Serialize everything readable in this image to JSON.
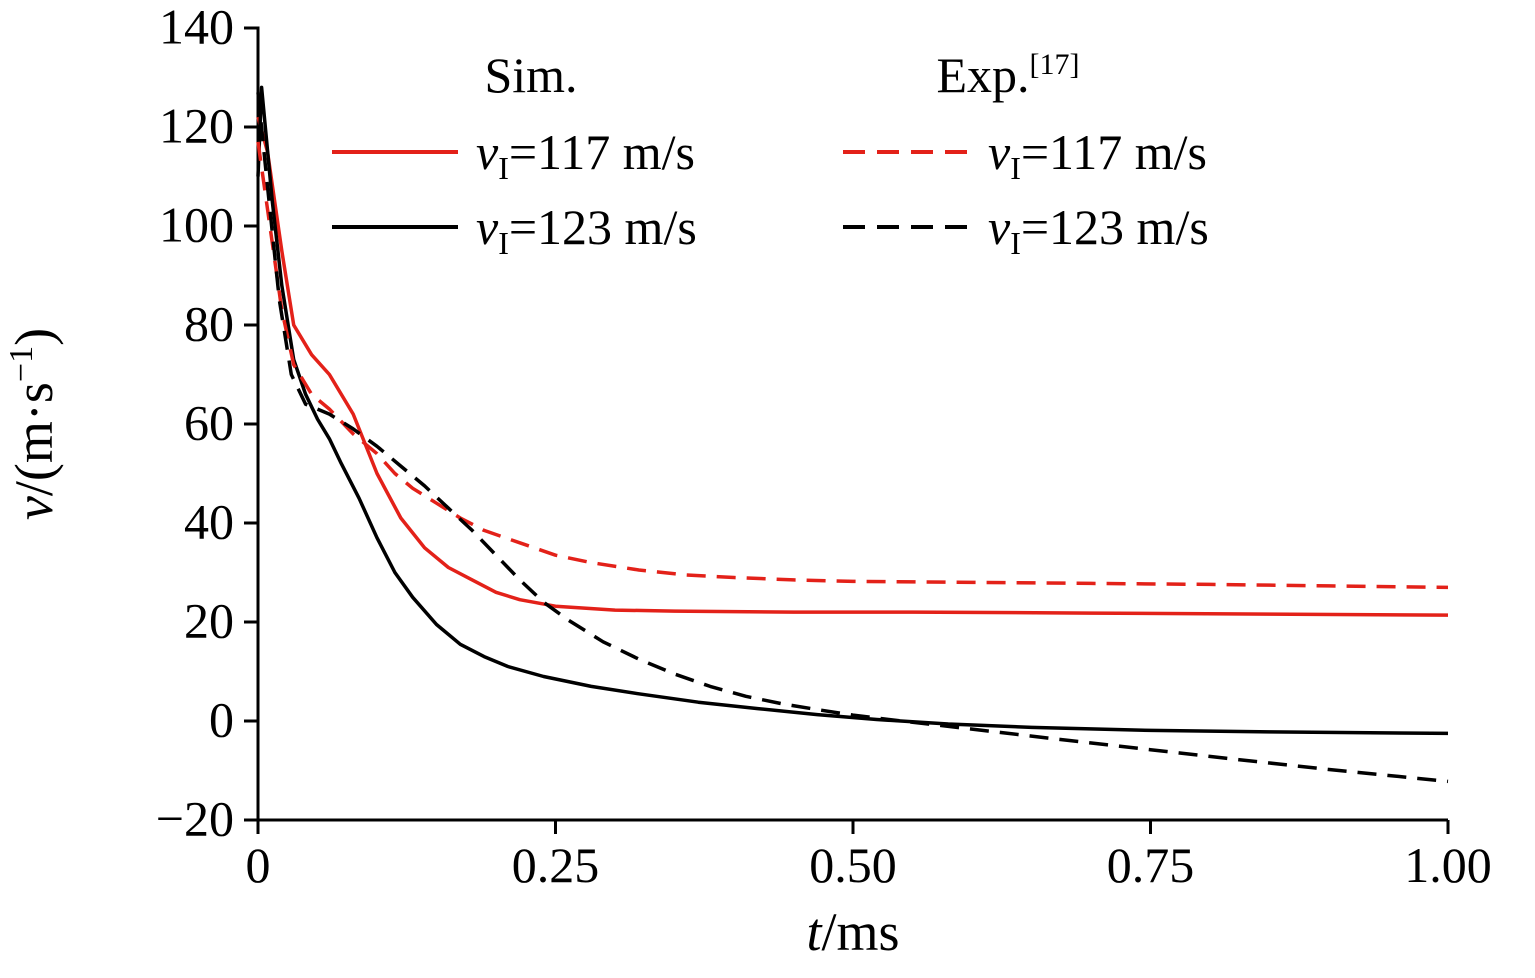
{
  "page": {
    "background": "#ffffff"
  },
  "chart_data": {
    "type": "line",
    "title": "",
    "xlabel": {
      "italic": "t",
      "rest": "/ms"
    },
    "ylabel": {
      "italic": "v",
      "pre_sup": "/(m·s",
      "sup": "−1",
      "post_sup": ")"
    },
    "xlim": [
      0,
      1.0
    ],
    "ylim": [
      -20,
      140
    ],
    "grid": false,
    "axis_color": "#000000",
    "xticks": {
      "values": [
        0,
        0.25,
        0.5,
        0.75,
        1.0
      ],
      "labels": [
        "0",
        "0.25",
        "0.50",
        "0.75",
        "1.00"
      ]
    },
    "yticks": {
      "values": [
        -20,
        0,
        20,
        40,
        60,
        80,
        100,
        120,
        140
      ],
      "labels": [
        "−20",
        "0",
        "20",
        "40",
        "60",
        "80",
        "100",
        "120",
        "140"
      ]
    },
    "legend": {
      "position": "top-inside",
      "columns": [
        {
          "header": "Sim.",
          "header_sup": "",
          "series": [
            0,
            1
          ]
        },
        {
          "header": "Exp.",
          "header_sup": "[17]",
          "series": [
            2,
            3
          ]
        }
      ]
    },
    "series": [
      {
        "name": "sim-v117",
        "label": {
          "italic": "v",
          "sub": "I",
          "rest": "=117 m/s"
        },
        "color": "#e32119",
        "dash": "solid",
        "points": [
          [
            0,
            122
          ],
          [
            0.008,
            115
          ],
          [
            0.02,
            95
          ],
          [
            0.03,
            80
          ],
          [
            0.045,
            74
          ],
          [
            0.06,
            70
          ],
          [
            0.08,
            62
          ],
          [
            0.1,
            50
          ],
          [
            0.12,
            41
          ],
          [
            0.14,
            35
          ],
          [
            0.16,
            31
          ],
          [
            0.18,
            28.5
          ],
          [
            0.2,
            26
          ],
          [
            0.22,
            24.5
          ],
          [
            0.25,
            23.2
          ],
          [
            0.3,
            22.4
          ],
          [
            0.35,
            22.2
          ],
          [
            0.45,
            22
          ],
          [
            0.55,
            22
          ],
          [
            0.7,
            21.8
          ],
          [
            0.85,
            21.6
          ],
          [
            1.0,
            21.4
          ]
        ]
      },
      {
        "name": "sim-v123",
        "label": {
          "italic": "v",
          "sub": "I",
          "rest": "=123 m/s"
        },
        "color": "#000000",
        "dash": "solid",
        "points": [
          [
            0,
            110
          ],
          [
            0.003,
            128
          ],
          [
            0.012,
            105
          ],
          [
            0.02,
            88
          ],
          [
            0.03,
            73
          ],
          [
            0.04,
            66
          ],
          [
            0.05,
            61
          ],
          [
            0.06,
            57
          ],
          [
            0.07,
            52
          ],
          [
            0.085,
            45
          ],
          [
            0.1,
            37
          ],
          [
            0.115,
            30
          ],
          [
            0.13,
            25
          ],
          [
            0.15,
            19.5
          ],
          [
            0.17,
            15.5
          ],
          [
            0.19,
            13
          ],
          [
            0.21,
            11
          ],
          [
            0.24,
            9
          ],
          [
            0.28,
            7
          ],
          [
            0.32,
            5.5
          ],
          [
            0.37,
            3.8
          ],
          [
            0.42,
            2.5
          ],
          [
            0.47,
            1.3
          ],
          [
            0.52,
            0.3
          ],
          [
            0.58,
            -0.6
          ],
          [
            0.65,
            -1.3
          ],
          [
            0.75,
            -1.9
          ],
          [
            0.85,
            -2.2
          ],
          [
            1.0,
            -2.5
          ]
        ]
      },
      {
        "name": "exp-v117",
        "label": {
          "italic": "v",
          "sub": "I",
          "rest": "=117 m/s"
        },
        "color": "#e32119",
        "dash": "dashed",
        "points": [
          [
            0,
            117
          ],
          [
            0.01,
            100
          ],
          [
            0.02,
            83
          ],
          [
            0.03,
            72
          ],
          [
            0.045,
            66
          ],
          [
            0.06,
            63
          ],
          [
            0.08,
            58
          ],
          [
            0.1,
            54
          ],
          [
            0.115,
            50
          ],
          [
            0.13,
            47
          ],
          [
            0.15,
            44
          ],
          [
            0.17,
            41
          ],
          [
            0.19,
            38.5
          ],
          [
            0.22,
            36
          ],
          [
            0.25,
            33.5
          ],
          [
            0.28,
            32
          ],
          [
            0.32,
            30.5
          ],
          [
            0.36,
            29.5
          ],
          [
            0.4,
            29
          ],
          [
            0.45,
            28.5
          ],
          [
            0.5,
            28.2
          ],
          [
            0.6,
            28
          ],
          [
            0.7,
            27.8
          ],
          [
            0.8,
            27.6
          ],
          [
            0.9,
            27.3
          ],
          [
            1.0,
            27
          ]
        ]
      },
      {
        "name": "exp-v123",
        "label": {
          "italic": "v",
          "sub": "I",
          "rest": "=123 m/s"
        },
        "color": "#000000",
        "dash": "dashed",
        "points": [
          [
            0,
            127
          ],
          [
            0.008,
            108
          ],
          [
            0.018,
            85
          ],
          [
            0.028,
            70
          ],
          [
            0.04,
            64
          ],
          [
            0.06,
            62
          ],
          [
            0.08,
            59
          ],
          [
            0.1,
            55.5
          ],
          [
            0.12,
            51.5
          ],
          [
            0.14,
            47.5
          ],
          [
            0.16,
            43
          ],
          [
            0.18,
            38.5
          ],
          [
            0.2,
            33.5
          ],
          [
            0.22,
            28.5
          ],
          [
            0.24,
            24
          ],
          [
            0.26,
            20.5
          ],
          [
            0.29,
            16
          ],
          [
            0.32,
            12.5
          ],
          [
            0.35,
            9.5
          ],
          [
            0.38,
            7
          ],
          [
            0.41,
            5
          ],
          [
            0.44,
            3.5
          ],
          [
            0.47,
            2.3
          ],
          [
            0.5,
            1.2
          ],
          [
            0.53,
            0.3
          ],
          [
            0.57,
            -0.8
          ],
          [
            0.62,
            -2.2
          ],
          [
            0.68,
            -3.9
          ],
          [
            0.75,
            -5.8
          ],
          [
            0.82,
            -7.7
          ],
          [
            0.9,
            -9.8
          ],
          [
            1.0,
            -12.2
          ]
        ]
      }
    ]
  }
}
